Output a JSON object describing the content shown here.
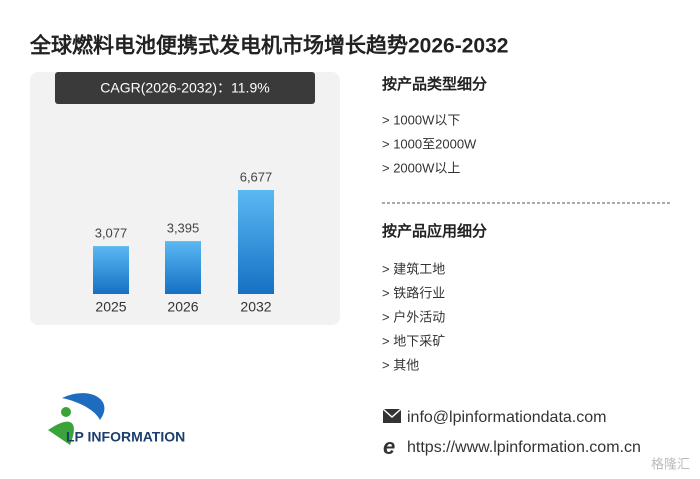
{
  "header": {
    "title": "全球燃料电池便携式发电机市场增长趋势2026-2032"
  },
  "cagr": "CAGR(2026-2032)：11.9%",
  "chart_data": {
    "type": "bar",
    "categories": [
      "2025",
      "2026",
      "2032"
    ],
    "values": [
      3077,
      3395,
      6677
    ],
    "value_labels": [
      "3,077",
      "3,395",
      "6,677"
    ],
    "color": "#2a8ad8"
  },
  "segments": [
    {
      "title": "按产品类型细分",
      "items": [
        "> 1000W以下",
        "> 1000至2000W",
        "> 2000W以上"
      ]
    },
    {
      "title": "按产品应用细分",
      "items": [
        "> 建筑工地",
        "> 铁路行业",
        "> 户外活动",
        "> 地下采矿",
        "> 其他"
      ]
    }
  ],
  "contact": {
    "email": "info@lpinformationdata.com",
    "website": "https://www.lpinformation.com.cn"
  },
  "logo": "LP INFORMATION",
  "watermark": "格隆汇"
}
